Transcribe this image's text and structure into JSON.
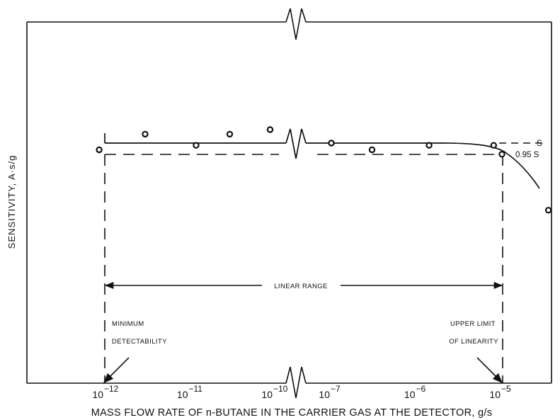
{
  "chart_data": {
    "type": "scatter",
    "title": "",
    "xlabel": "MASS FLOW RATE OF n-BUTANE IN THE CARRIER GAS AT THE DETECTOR, g/s",
    "ylabel": "SENSITIVITY, A·s/g",
    "x_scale": "log",
    "x_axis_break": "between 1e-10 and 1e-7",
    "x_ticks": [
      {
        "base": "10",
        "exp": "−12",
        "value": 1e-12
      },
      {
        "base": "10",
        "exp": "−11",
        "value": 1e-11
      },
      {
        "base": "10",
        "exp": "−10",
        "value": 1e-10
      },
      {
        "base": "10",
        "exp": "−7",
        "value": 1e-07
      },
      {
        "base": "10",
        "exp": "−6",
        "value": 1e-06
      },
      {
        "base": "10",
        "exp": "−5",
        "value": 1e-05
      }
    ],
    "y_ticks": [],
    "grid": false,
    "series": [
      {
        "points": [
          {
            "x": 3e-12,
            "y": 1.04
          },
          {
            "x": 1.2e-11,
            "y": 0.99
          },
          {
            "x": 3e-11,
            "y": 1.04
          },
          {
            "x": 9e-11,
            "y": 1.06
          },
          {
            "x": 1.9e-10,
            "y": 0.97
          },
          {
            "x": 1e-07,
            "y": 1.0
          },
          {
            "x": 3e-07,
            "y": 0.97
          },
          {
            "x": 1.4e-06,
            "y": 0.99
          },
          {
            "x": 8e-06,
            "y": 0.99
          },
          {
            "x": 1e-05,
            "y": 0.95
          },
          {
            "x": 3.5e-05,
            "y": 0.7
          }
        ]
      }
    ],
    "fit_curve": [
      {
        "x": 1e-12,
        "y": 1.0
      },
      {
        "x": 1.9e-10,
        "y": 1.0
      },
      {
        "x": 1e-07,
        "y": 1.0
      },
      {
        "x": 3e-06,
        "y": 1.0
      },
      {
        "x": 6e-06,
        "y": 0.99
      },
      {
        "x": 1.1e-05,
        "y": 0.94
      },
      {
        "x": 2e-05,
        "y": 0.84
      },
      {
        "x": 3.5e-05,
        "y": 0.7
      },
      {
        "x": 4.5e-05,
        "y": 0.64
      }
    ],
    "reference_lines": [
      {
        "label": "S",
        "y": 1.0
      },
      {
        "label": "0.95 S",
        "y": 0.95
      }
    ],
    "annotations": {
      "linear_range": "LINEAR RANGE",
      "minimum_line1": "MINIMUM",
      "minimum_line2": "DETECTABILITY",
      "upper_line1": "UPPER LIMIT",
      "upper_line2": "OF LINEARITY"
    }
  }
}
